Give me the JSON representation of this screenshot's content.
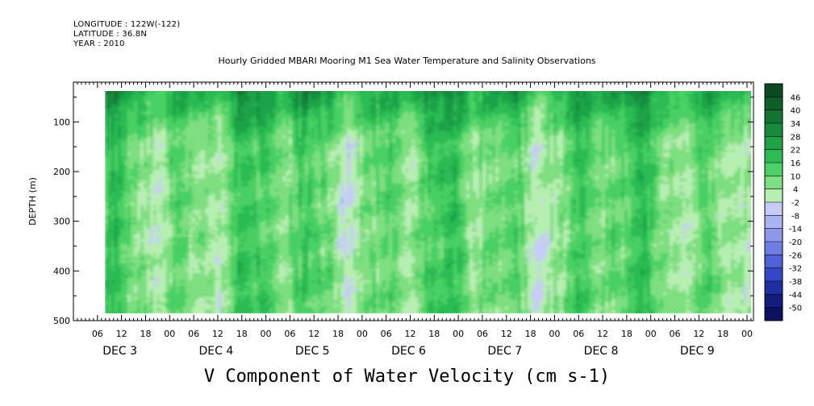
{
  "header": {
    "longitude": "LONGITUDE : 122W(-122)",
    "latitude": "LATITUDE : 36.8N",
    "year": "YEAR : 2010",
    "title": "Hourly Gridded MBARI Mooring M1 Sea Water Temperature and Salinity Observations"
  },
  "chart_data": {
    "type": "heatmap",
    "title": "Hourly Gridded MBARI Mooring M1 Sea Water Temperature and Salinity Observations",
    "variable_label": "V Component of Water Velocity (cm s-1)",
    "ylabel": "DEPTH (m)",
    "ylim": [
      500,
      20
    ],
    "y_ticks": [
      100,
      200,
      300,
      400,
      500
    ],
    "y_tick_labels": [
      "100",
      "200",
      "300",
      "400",
      "500"
    ],
    "data_depth_range": [
      20,
      485
    ],
    "x_hour_labels": [
      "06",
      "12",
      "18",
      "00",
      "06",
      "12",
      "18",
      "00",
      "06",
      "12",
      "18",
      "00",
      "06",
      "12",
      "18",
      "00",
      "06",
      "12",
      "18",
      "00",
      "06",
      "12",
      "18",
      "00",
      "06",
      "12",
      "18",
      "00"
    ],
    "x_day_labels": [
      "DEC  3",
      "DEC  4",
      "DEC  5",
      "DEC  6",
      "DEC  7",
      "DEC  8",
      "DEC  9"
    ],
    "colorbar_levels": [
      "46",
      "40",
      "34",
      "28",
      "22",
      "16",
      "10",
      "4",
      "-2",
      "-8",
      "-14",
      "-20",
      "-26",
      "-32",
      "-38",
      "-44",
      "-50"
    ],
    "colorbar_colors": [
      "#0a4a1e",
      "#0e5e28",
      "#127332",
      "#178a3c",
      "#1ea347",
      "#2cbb52",
      "#4ad064",
      "#7ddf7f",
      "#b7eeb2",
      "#c6ccf5",
      "#a9b3f1",
      "#8d98eb",
      "#6f7ee4",
      "#4f60d8",
      "#3447c4",
      "#1f2fa3",
      "#141c7f",
      "#0b1160"
    ],
    "dominant_colors": {
      "green": "#7ddf7f",
      "blue": "#a9b3f1"
    }
  }
}
